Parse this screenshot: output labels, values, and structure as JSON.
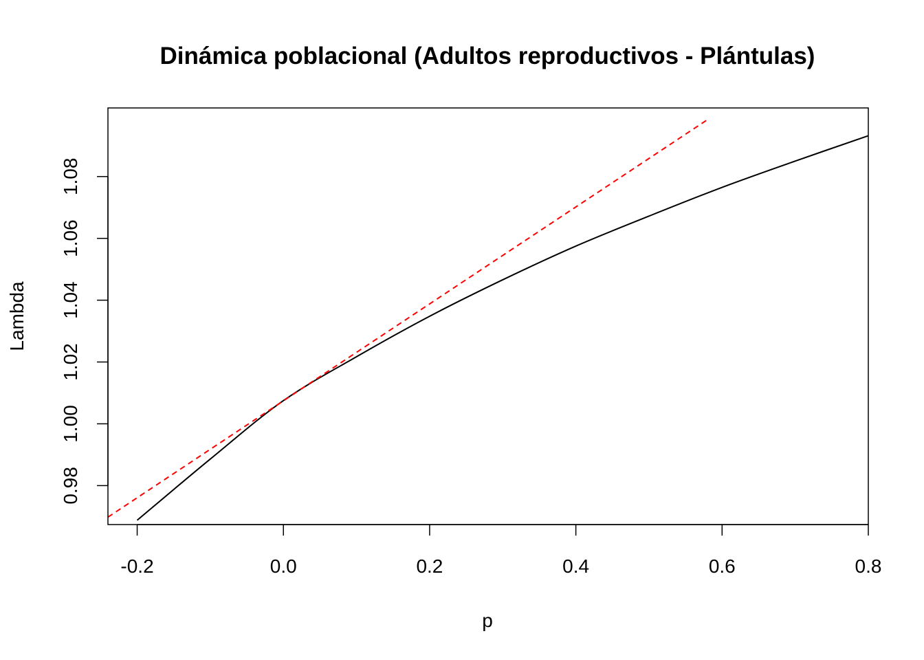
{
  "chart_data": {
    "type": "line",
    "title": "Dinámica poblacional (Adultos reproductivos - Plántulas)",
    "xlabel": "p",
    "ylabel": "Lambda",
    "xlim": [
      -0.24,
      0.8
    ],
    "ylim": [
      0.9674,
      1.1022
    ],
    "x_ticks": [
      -0.2,
      0.0,
      0.2,
      0.4,
      0.6,
      0.8
    ],
    "x_tick_labels": [
      "-0.2",
      "0.0",
      "0.2",
      "0.4",
      "0.6",
      "0.8"
    ],
    "y_ticks": [
      0.98,
      1.0,
      1.02,
      1.04,
      1.06,
      1.08
    ],
    "y_tick_labels": [
      "0.98",
      "1.00",
      "1.02",
      "1.04",
      "1.06",
      "1.08"
    ],
    "grid": false,
    "series": [
      {
        "style": "solid",
        "color": "#000000",
        "x": [
          -0.2,
          -0.1,
          0.0,
          0.1,
          0.2,
          0.3,
          0.4,
          0.5,
          0.6,
          0.7,
          0.8
        ],
        "y": [
          0.9688,
          0.9886,
          1.0075,
          1.0217,
          1.0348,
          1.0466,
          1.0575,
          1.0672,
          1.0765,
          1.085,
          1.0932
        ]
      },
      {
        "style": "dashed",
        "color": "#ff0000",
        "x": [
          -0.24,
          0.58
        ],
        "y": [
          0.9698,
          1.0984
        ]
      }
    ]
  }
}
